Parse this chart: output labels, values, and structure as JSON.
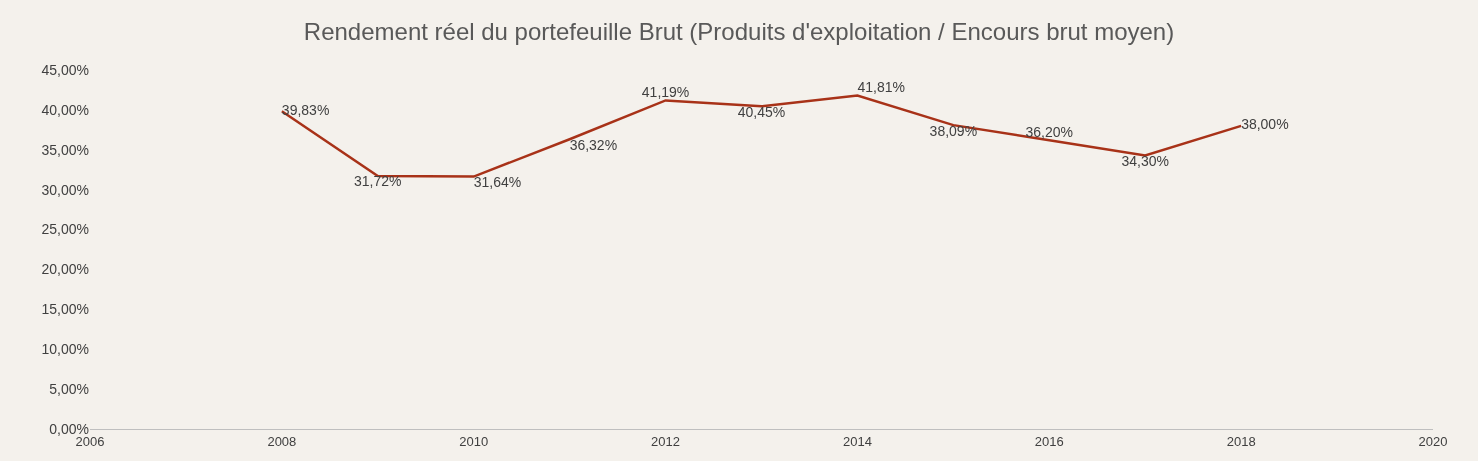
{
  "chart_data": {
    "type": "line",
    "title": "Rendement réel du portefeuille Brut (Produits d'exploitation / Encours brut moyen)",
    "x": [
      2008,
      2009,
      2010,
      2011,
      2012,
      2013,
      2014,
      2015,
      2016,
      2017,
      2018
    ],
    "series": [
      {
        "color": "#a83218",
        "values": [
          39.83,
          31.72,
          31.64,
          36.32,
          41.19,
          40.45,
          41.81,
          38.09,
          36.2,
          34.3,
          38.0
        ],
        "value_labels": [
          "39,83%",
          "31,72%",
          "31,64%",
          "36,32%",
          "41,19%",
          "40,45%",
          "41,81%",
          "38,09%",
          "36,20%",
          "34,30%",
          "38,00%"
        ]
      }
    ],
    "xlim": [
      2006,
      2020
    ],
    "xticks": [
      2006,
      2008,
      2010,
      2012,
      2014,
      2016,
      2018,
      2020
    ],
    "ylim": [
      0,
      45
    ],
    "yticks": [
      {
        "value": 0,
        "label": "0,00%"
      },
      {
        "value": 5,
        "label": "5,00%"
      },
      {
        "value": 10,
        "label": "10,00%"
      },
      {
        "value": 15,
        "label": "15,00%"
      },
      {
        "value": 20,
        "label": "20,00%"
      },
      {
        "value": 25,
        "label": "25,00%"
      },
      {
        "value": 30,
        "label": "30,00%"
      },
      {
        "value": 35,
        "label": "35,00%"
      },
      {
        "value": 40,
        "label": "40,00%"
      },
      {
        "value": 45,
        "label": "45,00%"
      }
    ],
    "grid": false,
    "legend": false,
    "marker": "none",
    "line_style": "solid"
  }
}
